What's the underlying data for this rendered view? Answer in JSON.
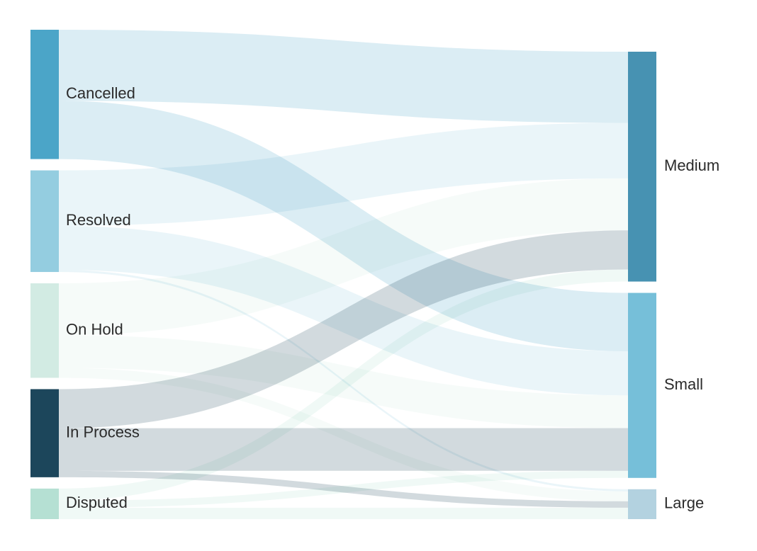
{
  "chart_data": {
    "type": "sankey",
    "sources": [
      {
        "name": "Cancelled",
        "color": "#4ba5c8"
      },
      {
        "name": "Resolved",
        "color": "#94cde0"
      },
      {
        "name": "On Hold",
        "color": "#d2ebe3"
      },
      {
        "name": "In Process",
        "color": "#1c465b"
      },
      {
        "name": "Disputed",
        "color": "#b5e0d3"
      }
    ],
    "targets": [
      {
        "name": "Medium",
        "color": "#4792b2"
      },
      {
        "name": "Small",
        "color": "#76bfd9"
      },
      {
        "name": "Large",
        "color": "#b3d2e0"
      }
    ],
    "links": [
      {
        "source": "Cancelled",
        "target": "Medium",
        "value": 100
      },
      {
        "source": "Cancelled",
        "target": "Small",
        "value": 82
      },
      {
        "source": "Resolved",
        "target": "Medium",
        "value": 78
      },
      {
        "source": "Resolved",
        "target": "Small",
        "value": 62
      },
      {
        "source": "Resolved",
        "target": "Large",
        "value": 3
      },
      {
        "source": "On Hold",
        "target": "Medium",
        "value": 73
      },
      {
        "source": "On Hold",
        "target": "Small",
        "value": 46
      },
      {
        "source": "On Hold",
        "target": "Large",
        "value": 14
      },
      {
        "source": "In Process",
        "target": "Medium",
        "value": 55
      },
      {
        "source": "In Process",
        "target": "Small",
        "value": 60
      },
      {
        "source": "In Process",
        "target": "Large",
        "value": 9
      },
      {
        "source": "Disputed",
        "target": "Medium",
        "value": 17
      },
      {
        "source": "Disputed",
        "target": "Small",
        "value": 10
      },
      {
        "source": "Disputed",
        "target": "Large",
        "value": 16
      }
    ]
  }
}
